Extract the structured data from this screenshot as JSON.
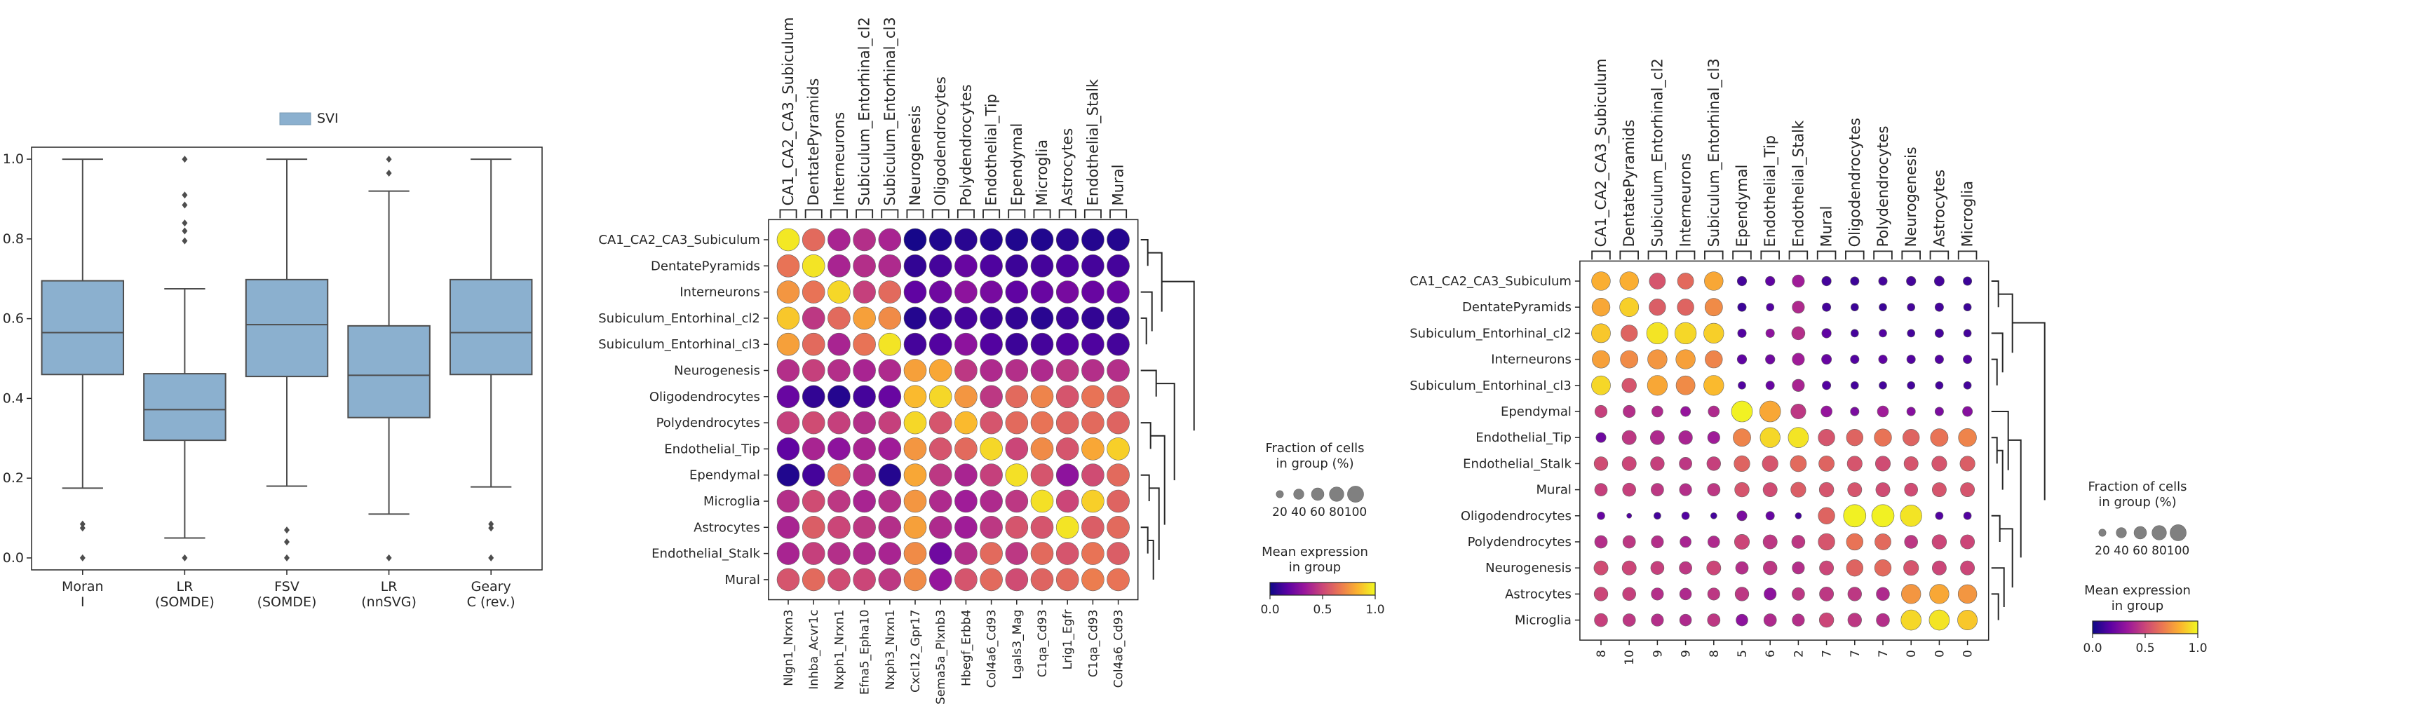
{
  "figure": {
    "background": "#ffffff",
    "axis_color": "#262626"
  },
  "colormap": {
    "name": "plasma",
    "stops": [
      "#0d0887",
      "#5b02a3",
      "#9a179b",
      "#cb4678",
      "#eb7852",
      "#fbb32f",
      "#f0f921"
    ]
  },
  "chart_data": [
    {
      "id": "boxplot",
      "type": "box",
      "legend": {
        "label": "SVI",
        "color": "#8bb0cf",
        "position": "top"
      },
      "categories": [
        "Moran\nI",
        "LR\n(SOMDE)",
        "FSV\n(SOMDE)",
        "LR\n(nnSVG)",
        "Geary\nC (rev.)"
      ],
      "ylim": [
        -0.03,
        1.03
      ],
      "yticks": [
        "0.0",
        "0.2",
        "0.4",
        "0.6",
        "0.8",
        "1.0"
      ],
      "boxes": [
        {
          "whisker_low": 0.175,
          "q1": 0.46,
          "median": 0.565,
          "q3": 0.695,
          "whisker_high": 1.0,
          "outliers": [
            0.085,
            0.075,
            0.0
          ]
        },
        {
          "whisker_low": 0.05,
          "q1": 0.295,
          "median": 0.372,
          "q3": 0.462,
          "whisker_high": 0.675,
          "outliers": [
            1.0,
            0.91,
            0.885,
            0.84,
            0.82,
            0.795,
            0.0
          ]
        },
        {
          "whisker_low": 0.18,
          "q1": 0.455,
          "median": 0.585,
          "q3": 0.698,
          "whisker_high": 1.0,
          "outliers": [
            0.07,
            0.04,
            0.0
          ]
        },
        {
          "whisker_low": 0.11,
          "q1": 0.352,
          "median": 0.458,
          "q3": 0.582,
          "whisker_high": 0.92,
          "outliers": [
            1.0,
            0.965,
            0.0
          ]
        },
        {
          "whisker_low": 0.178,
          "q1": 0.46,
          "median": 0.565,
          "q3": 0.698,
          "whisker_high": 1.0,
          "outliers": [
            0.085,
            0.075,
            0.0
          ]
        }
      ]
    },
    {
      "id": "dotplot-1",
      "type": "dotplot",
      "rows": [
        "CA1_CA2_CA3_Subiculum",
        "DentatePyramids",
        "Interneurons",
        "Subiculum_Entorhinal_cl2",
        "Subiculum_Entorhinal_cl3",
        "Neurogenesis",
        "Oligodendrocytes",
        "Polydendrocytes",
        "Endothelial_Tip",
        "Ependymal",
        "Microglia",
        "Astrocytes",
        "Endothelial_Stalk",
        "Mural"
      ],
      "top_groups": [
        "CA1_CA2_CA3_Subiculum",
        "DentatePyramids",
        "Interneurons",
        "Subiculum_Entorhinal_cl2",
        "Subiculum_Entorhinal_cl3",
        "Neurogenesis",
        "Oligodendrocytes",
        "Polydendrocytes",
        "Endothelial_Tip",
        "Ependymal",
        "Microglia",
        "Astrocytes",
        "Endothelial_Stalk",
        "Mural"
      ],
      "columns": [
        "Nlgn1_Nrxn3",
        "Inhba_Acvr1c",
        "Nxph1_Nrxn1",
        "Efna5_Epha10",
        "Nxph3_Nrxn1",
        "Cxcl12_Gpr17",
        "Sema5a_Plxnb3",
        "Hbegf_Erbb4",
        "Col4a6_Cd93",
        "Lgals3_Mag",
        "C1qa_Cd93",
        "Lrig1_Egfr",
        "C1qa_Cd93",
        "Col4a6_Cd93"
      ],
      "mean_expression": [
        [
          0.96,
          0.62,
          0.38,
          0.42,
          0.38,
          0.02,
          0.04,
          0.06,
          0.05,
          0.04,
          0.04,
          0.06,
          0.05,
          0.05
        ],
        [
          0.65,
          0.95,
          0.38,
          0.42,
          0.4,
          0.08,
          0.12,
          0.2,
          0.14,
          0.1,
          0.12,
          0.14,
          0.12,
          0.12
        ],
        [
          0.75,
          0.65,
          0.92,
          0.48,
          0.62,
          0.18,
          0.22,
          0.3,
          0.24,
          0.18,
          0.2,
          0.24,
          0.2,
          0.2
        ],
        [
          0.88,
          0.45,
          0.62,
          0.78,
          0.72,
          0.05,
          0.1,
          0.12,
          0.1,
          0.08,
          0.06,
          0.1,
          0.08,
          0.08
        ],
        [
          0.78,
          0.62,
          0.38,
          0.65,
          0.95,
          0.12,
          0.15,
          0.3,
          0.15,
          0.1,
          0.12,
          0.15,
          0.14,
          0.12
        ],
        [
          0.42,
          0.48,
          0.42,
          0.38,
          0.4,
          0.78,
          0.8,
          0.45,
          0.4,
          0.42,
          0.4,
          0.45,
          0.42,
          0.42
        ],
        [
          0.2,
          0.08,
          0.05,
          0.12,
          0.2,
          0.85,
          0.92,
          0.75,
          0.45,
          0.62,
          0.7,
          0.55,
          0.65,
          0.6
        ],
        [
          0.48,
          0.52,
          0.48,
          0.42,
          0.48,
          0.92,
          0.55,
          0.85,
          0.55,
          0.62,
          0.65,
          0.6,
          0.62,
          0.6
        ],
        [
          0.18,
          0.38,
          0.3,
          0.38,
          0.35,
          0.75,
          0.55,
          0.62,
          0.92,
          0.5,
          0.72,
          0.55,
          0.8,
          0.9
        ],
        [
          0.04,
          0.12,
          0.65,
          0.4,
          0.05,
          0.8,
          0.45,
          0.38,
          0.48,
          0.94,
          0.55,
          0.3,
          0.52,
          0.62
        ],
        [
          0.42,
          0.52,
          0.45,
          0.38,
          0.42,
          0.75,
          0.4,
          0.35,
          0.4,
          0.45,
          0.94,
          0.5,
          0.9,
          0.6
        ],
        [
          0.38,
          0.58,
          0.5,
          0.45,
          0.42,
          0.78,
          0.4,
          0.35,
          0.45,
          0.55,
          0.55,
          0.95,
          0.58,
          0.62
        ],
        [
          0.38,
          0.48,
          0.42,
          0.4,
          0.38,
          0.72,
          0.22,
          0.42,
          0.62,
          0.45,
          0.62,
          0.55,
          0.65,
          0.58
        ],
        [
          0.55,
          0.62,
          0.52,
          0.5,
          0.45,
          0.72,
          0.32,
          0.55,
          0.62,
          0.52,
          0.6,
          0.62,
          0.68,
          0.65
        ]
      ],
      "fraction_cells": [
        [
          100,
          100,
          100,
          100,
          100,
          100,
          100,
          100,
          100,
          100,
          100,
          100,
          100,
          100
        ],
        [
          100,
          100,
          100,
          100,
          100,
          100,
          100,
          100,
          100,
          100,
          100,
          100,
          100,
          100
        ],
        [
          100,
          100,
          100,
          100,
          100,
          100,
          100,
          100,
          100,
          100,
          100,
          100,
          100,
          100
        ],
        [
          100,
          100,
          100,
          100,
          100,
          100,
          100,
          100,
          100,
          100,
          100,
          100,
          100,
          100
        ],
        [
          100,
          100,
          100,
          100,
          100,
          100,
          100,
          100,
          100,
          100,
          100,
          100,
          100,
          100
        ],
        [
          100,
          100,
          100,
          100,
          100,
          100,
          100,
          100,
          100,
          100,
          100,
          100,
          100,
          100
        ],
        [
          100,
          100,
          100,
          100,
          100,
          100,
          100,
          100,
          100,
          100,
          100,
          100,
          100,
          100
        ],
        [
          100,
          100,
          100,
          100,
          100,
          100,
          100,
          100,
          100,
          100,
          100,
          100,
          100,
          100
        ],
        [
          100,
          100,
          100,
          100,
          100,
          100,
          100,
          100,
          100,
          100,
          100,
          100,
          100,
          100
        ],
        [
          100,
          100,
          100,
          100,
          100,
          100,
          100,
          100,
          100,
          100,
          100,
          100,
          100,
          100
        ],
        [
          100,
          100,
          100,
          100,
          100,
          100,
          100,
          100,
          100,
          100,
          100,
          100,
          100,
          100
        ],
        [
          100,
          100,
          100,
          100,
          100,
          100,
          100,
          100,
          100,
          100,
          100,
          100,
          100,
          100
        ],
        [
          100,
          100,
          100,
          100,
          100,
          100,
          100,
          100,
          100,
          100,
          100,
          100,
          100,
          100
        ],
        [
          100,
          100,
          100,
          100,
          100,
          100,
          100,
          100,
          100,
          100,
          100,
          100,
          100,
          100
        ]
      ],
      "dendrogram": "right",
      "size_legend": {
        "title": "Fraction of cells\nin group (%)",
        "ticks": [
          "20",
          "40",
          "60",
          "80",
          "100"
        ]
      },
      "color_legend": {
        "title": "Mean expression\nin group",
        "ticks": [
          "0.0",
          "0.5",
          "1.0"
        ]
      }
    },
    {
      "id": "dotplot-2",
      "type": "dotplot",
      "rows": [
        "CA1_CA2_CA3_Subiculum",
        "DentatePyramids",
        "Subiculum_Entorhinal_cl2",
        "Interneurons",
        "Subiculum_Entorhinal_cl3",
        "Ependymal",
        "Endothelial_Tip",
        "Endothelial_Stalk",
        "Mural",
        "Oligodendrocytes",
        "Polydendrocytes",
        "Neurogenesis",
        "Astrocytes",
        "Microglia"
      ],
      "top_groups": [
        "CA1_CA2_CA3_Subiculum",
        "DentatePyramids",
        "Subiculum_Entorhinal_cl2",
        "Interneurons",
        "Subiculum_Entorhinal_cl3",
        "Ependymal",
        "Endothelial_Tip",
        "Endothelial_Stalk",
        "Mural",
        "Oligodendrocytes",
        "Polydendrocytes",
        "Neurogenesis",
        "Astrocytes",
        "Microglia"
      ],
      "columns": [
        "8",
        "10",
        "9",
        "9",
        "8",
        "5",
        "6",
        "2",
        "7",
        "7",
        "7",
        "0",
        "0",
        "0"
      ],
      "mean_expression": [
        [
          0.82,
          0.82,
          0.55,
          0.62,
          0.8,
          0.12,
          0.18,
          0.35,
          0.12,
          0.1,
          0.12,
          0.12,
          0.12,
          0.1
        ],
        [
          0.8,
          0.9,
          0.58,
          0.6,
          0.72,
          0.1,
          0.15,
          0.4,
          0.12,
          0.1,
          0.1,
          0.12,
          0.12,
          0.1
        ],
        [
          0.88,
          0.6,
          0.95,
          0.92,
          0.9,
          0.15,
          0.3,
          0.42,
          0.18,
          0.12,
          0.15,
          0.12,
          0.12,
          0.12
        ],
        [
          0.78,
          0.72,
          0.75,
          0.78,
          0.7,
          0.18,
          0.22,
          0.35,
          0.2,
          0.15,
          0.18,
          0.15,
          0.15,
          0.15
        ],
        [
          0.92,
          0.55,
          0.8,
          0.72,
          0.85,
          0.15,
          0.2,
          0.38,
          0.15,
          0.12,
          0.12,
          0.12,
          0.12,
          0.12
        ],
        [
          0.48,
          0.42,
          0.4,
          0.32,
          0.4,
          0.98,
          0.8,
          0.45,
          0.32,
          0.25,
          0.35,
          0.28,
          0.25,
          0.28
        ],
        [
          0.22,
          0.45,
          0.4,
          0.38,
          0.35,
          0.7,
          0.92,
          0.95,
          0.55,
          0.6,
          0.65,
          0.6,
          0.65,
          0.7
        ],
        [
          0.52,
          0.5,
          0.48,
          0.45,
          0.48,
          0.6,
          0.55,
          0.62,
          0.6,
          0.55,
          0.52,
          0.55,
          0.55,
          0.58
        ],
        [
          0.48,
          0.48,
          0.45,
          0.42,
          0.45,
          0.55,
          0.52,
          0.58,
          0.55,
          0.55,
          0.52,
          0.52,
          0.55,
          0.55
        ],
        [
          0.2,
          0.15,
          0.12,
          0.15,
          0.12,
          0.25,
          0.2,
          0.12,
          0.6,
          0.98,
          0.98,
          0.95,
          0.15,
          0.15
        ],
        [
          0.42,
          0.45,
          0.42,
          0.38,
          0.4,
          0.5,
          0.45,
          0.45,
          0.55,
          0.65,
          0.62,
          0.45,
          0.5,
          0.5
        ],
        [
          0.52,
          0.5,
          0.48,
          0.45,
          0.5,
          0.42,
          0.45,
          0.42,
          0.5,
          0.6,
          0.62,
          0.55,
          0.5,
          0.5
        ],
        [
          0.5,
          0.48,
          0.42,
          0.4,
          0.45,
          0.45,
          0.3,
          0.45,
          0.45,
          0.45,
          0.4,
          0.75,
          0.8,
          0.75
        ],
        [
          0.48,
          0.45,
          0.42,
          0.4,
          0.45,
          0.3,
          0.4,
          0.42,
          0.5,
          0.45,
          0.42,
          0.92,
          0.95,
          0.88
        ]
      ],
      "fraction_cells": [
        [
          70,
          70,
          52,
          52,
          70,
          18,
          18,
          30,
          18,
          15,
          15,
          18,
          20,
          15
        ],
        [
          65,
          72,
          55,
          55,
          62,
          15,
          12,
          30,
          15,
          12,
          12,
          12,
          15,
          12
        ],
        [
          72,
          55,
          92,
          92,
          80,
          15,
          15,
          35,
          18,
          12,
          12,
          12,
          15,
          12
        ],
        [
          62,
          62,
          75,
          75,
          60,
          18,
          18,
          30,
          20,
          15,
          15,
          15,
          15,
          15
        ],
        [
          72,
          42,
          80,
          72,
          80,
          12,
          15,
          30,
          15,
          12,
          12,
          12,
          12,
          12
        ],
        [
          30,
          30,
          25,
          20,
          25,
          88,
          88,
          45,
          25,
          15,
          25,
          15,
          15,
          20
        ],
        [
          20,
          40,
          40,
          38,
          30,
          62,
          80,
          82,
          55,
          55,
          60,
          55,
          62,
          65
        ],
        [
          38,
          40,
          38,
          32,
          38,
          50,
          50,
          52,
          48,
          45,
          45,
          40,
          45,
          45
        ],
        [
          32,
          35,
          32,
          30,
          32,
          42,
          40,
          45,
          42,
          40,
          40,
          35,
          40,
          40
        ],
        [
          12,
          5,
          10,
          12,
          8,
          20,
          15,
          8,
          55,
          100,
          100,
          92,
          12,
          12
        ],
        [
          32,
          32,
          30,
          25,
          28,
          45,
          40,
          35,
          55,
          55,
          52,
          35,
          42,
          40
        ],
        [
          40,
          40,
          35,
          32,
          40,
          32,
          38,
          30,
          40,
          55,
          55,
          45,
          40,
          40
        ],
        [
          38,
          35,
          30,
          28,
          30,
          38,
          30,
          32,
          40,
          38,
          35,
          75,
          75,
          70
        ],
        [
          35,
          32,
          30,
          28,
          32,
          28,
          32,
          30,
          42,
          38,
          35,
          82,
          82,
          78
        ]
      ],
      "dendrogram": "right",
      "size_legend": {
        "title": "Fraction of cells\nin group (%)",
        "ticks": [
          "20",
          "40",
          "60",
          "80",
          "100"
        ]
      },
      "color_legend": {
        "title": "Mean expression\nin group",
        "ticks": [
          "0.0",
          "0.5",
          "1.0"
        ]
      }
    }
  ]
}
